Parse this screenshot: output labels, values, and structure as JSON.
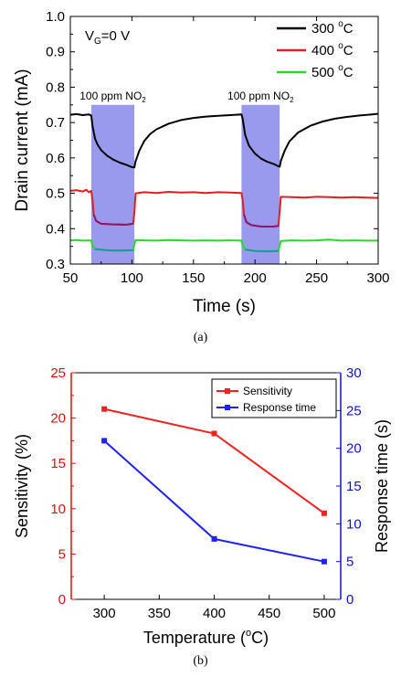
{
  "chart_data": [
    {
      "type": "line",
      "panel_label": "(a)",
      "xlabel": "Time (s)",
      "ylabel": "Drain current (mA)",
      "xlim": [
        50,
        300
      ],
      "ylim": [
        0.3,
        1.0
      ],
      "x_ticks": [
        "50",
        "100",
        "150",
        "200",
        "250",
        "300"
      ],
      "y_ticks": [
        "0.3",
        "0.4",
        "0.5",
        "0.6",
        "0.7",
        "0.8",
        "0.9",
        "1.0"
      ],
      "annotation": {
        "sub_base": "V",
        "sub": "G",
        "rest": "=0 V"
      },
      "legend_placement": "top-right",
      "exposure_windows": [
        {
          "start": 67,
          "end": 102,
          "label_main": "100 ppm NO",
          "label_sub": "2",
          "color": "#9999ee"
        },
        {
          "start": 189,
          "end": 220,
          "label_main": "100 ppm NO",
          "label_sub": "2",
          "color": "#9999ee"
        }
      ],
      "series": [
        {
          "name": "300 °C",
          "legend_main": "300 ",
          "legend_sup": "o",
          "legend_unit": "C",
          "color": "#000000",
          "points": [
            [
              50,
              0.722
            ],
            [
              55,
              0.724
            ],
            [
              60,
              0.721
            ],
            [
              65,
              0.723
            ],
            [
              67,
              0.72
            ],
            [
              68,
              0.69
            ],
            [
              70,
              0.655
            ],
            [
              72,
              0.638
            ],
            [
              75,
              0.622
            ],
            [
              80,
              0.606
            ],
            [
              85,
              0.595
            ],
            [
              90,
              0.587
            ],
            [
              95,
              0.581
            ],
            [
              100,
              0.574
            ],
            [
              102,
              0.573
            ],
            [
              103,
              0.59
            ],
            [
              106,
              0.62
            ],
            [
              110,
              0.648
            ],
            [
              115,
              0.668
            ],
            [
              120,
              0.681
            ],
            [
              130,
              0.697
            ],
            [
              140,
              0.707
            ],
            [
              150,
              0.713
            ],
            [
              160,
              0.717
            ],
            [
              170,
              0.719
            ],
            [
              180,
              0.721
            ],
            [
              189,
              0.723
            ],
            [
              190,
              0.71
            ],
            [
              192,
              0.665
            ],
            [
              195,
              0.635
            ],
            [
              200,
              0.612
            ],
            [
              205,
              0.598
            ],
            [
              210,
              0.589
            ],
            [
              215,
              0.583
            ],
            [
              218,
              0.578
            ],
            [
              220,
              0.575
            ],
            [
              221,
              0.592
            ],
            [
              224,
              0.62
            ],
            [
              228,
              0.647
            ],
            [
              235,
              0.672
            ],
            [
              245,
              0.691
            ],
            [
              255,
              0.703
            ],
            [
              265,
              0.711
            ],
            [
              275,
              0.716
            ],
            [
              285,
              0.72
            ],
            [
              295,
              0.723
            ],
            [
              300,
              0.725
            ]
          ]
        },
        {
          "name": "400 °C",
          "legend_main": "400 ",
          "legend_sup": "o",
          "legend_unit": "C",
          "color": "#e02020",
          "points": [
            [
              50,
              0.507
            ],
            [
              55,
              0.509
            ],
            [
              60,
              0.505
            ],
            [
              63,
              0.51
            ],
            [
              65,
              0.503
            ],
            [
              67,
              0.507
            ],
            [
              68,
              0.48
            ],
            [
              69,
              0.44
            ],
            [
              71,
              0.422
            ],
            [
              75,
              0.414
            ],
            [
              85,
              0.412
            ],
            [
              95,
              0.411
            ],
            [
              101,
              0.414
            ],
            [
              102,
              0.445
            ],
            [
              103,
              0.5
            ],
            [
              110,
              0.503
            ],
            [
              120,
              0.501
            ],
            [
              130,
              0.504
            ],
            [
              140,
              0.502
            ],
            [
              150,
              0.503
            ],
            [
              160,
              0.501
            ],
            [
              170,
              0.503
            ],
            [
              180,
              0.502
            ],
            [
              189,
              0.501
            ],
            [
              190,
              0.48
            ],
            [
              191,
              0.44
            ],
            [
              193,
              0.418
            ],
            [
              197,
              0.41
            ],
            [
              205,
              0.406
            ],
            [
              215,
              0.406
            ],
            [
              219,
              0.408
            ],
            [
              220,
              0.45
            ],
            [
              221,
              0.49
            ],
            [
              230,
              0.489
            ],
            [
              240,
              0.488
            ],
            [
              250,
              0.49
            ],
            [
              260,
              0.489
            ],
            [
              270,
              0.488
            ],
            [
              280,
              0.489
            ],
            [
              290,
              0.488
            ],
            [
              300,
              0.487
            ]
          ],
          "low_segment_color": "#8b1a6a"
        },
        {
          "name": "500 °C",
          "legend_main": "500 ",
          "legend_sup": "o",
          "legend_unit": "C",
          "color": "#22dd22",
          "points": [
            [
              50,
              0.367
            ],
            [
              55,
              0.368
            ],
            [
              60,
              0.366
            ],
            [
              65,
              0.367
            ],
            [
              67,
              0.366
            ],
            [
              68,
              0.352
            ],
            [
              70,
              0.342
            ],
            [
              80,
              0.339
            ],
            [
              90,
              0.338
            ],
            [
              101,
              0.339
            ],
            [
              102,
              0.355
            ],
            [
              103,
              0.368
            ],
            [
              110,
              0.367
            ],
            [
              120,
              0.366
            ],
            [
              130,
              0.368
            ],
            [
              140,
              0.367
            ],
            [
              150,
              0.366
            ],
            [
              160,
              0.367
            ],
            [
              170,
              0.366
            ],
            [
              180,
              0.367
            ],
            [
              189,
              0.366
            ],
            [
              190,
              0.352
            ],
            [
              192,
              0.341
            ],
            [
              200,
              0.337
            ],
            [
              210,
              0.336
            ],
            [
              219,
              0.337
            ],
            [
              220,
              0.352
            ],
            [
              221,
              0.365
            ],
            [
              230,
              0.367
            ],
            [
              240,
              0.366
            ],
            [
              250,
              0.367
            ],
            [
              260,
              0.369
            ],
            [
              270,
              0.366
            ],
            [
              280,
              0.367
            ],
            [
              290,
              0.366
            ],
            [
              300,
              0.366
            ]
          ],
          "low_segment_color": "#1a9a9a"
        }
      ]
    },
    {
      "type": "line",
      "panel_label": "(b)",
      "xlabel_main": "Temperature (",
      "xlabel_sup": "o",
      "xlabel_end": "C)",
      "ylabel": "Sensitivity (%)",
      "y2label": "Response time (s)",
      "xlim": [
        270,
        515
      ],
      "ylim": [
        0,
        25
      ],
      "y2lim": [
        0,
        30
      ],
      "x_ticks": [
        "300",
        "350",
        "400",
        "450",
        "500"
      ],
      "y_ticks": [
        "0",
        "5",
        "10",
        "15",
        "20",
        "25"
      ],
      "y2_ticks": [
        "0",
        "5",
        "10",
        "15",
        "20",
        "25",
        "30"
      ],
      "legend_placement": "top-right",
      "axis_colors": {
        "left": "#dd1111",
        "right": "#1111cc"
      },
      "series": [
        {
          "name": "Sensitivity",
          "axis": "left",
          "color": "#ee2222",
          "x": [
            300,
            400,
            500
          ],
          "values": [
            21.0,
            18.3,
            9.5
          ]
        },
        {
          "name": "Response time",
          "axis": "right",
          "color": "#2222ee",
          "x": [
            300,
            400,
            500
          ],
          "values": [
            21,
            8,
            5
          ]
        }
      ]
    }
  ]
}
